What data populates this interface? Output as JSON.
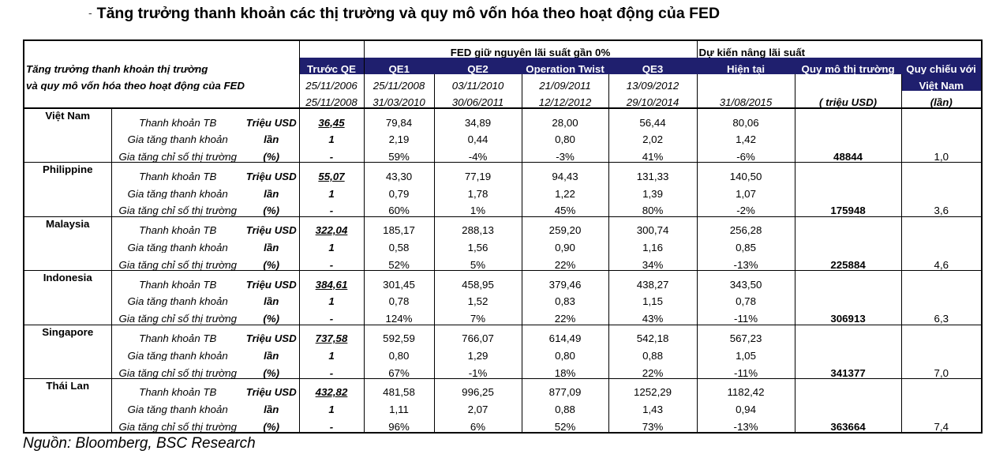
{
  "title": "Tăng trưởng thanh khoản các thị trường và quy mô vốn hóa theo hoạt động của FED",
  "source": "Nguồn: Bloomberg, BSC Research",
  "header": {
    "group_fed": "FED giữ nguyên lãi suất gần 0%",
    "group_rate": "Dự kiến nâng lãi suất",
    "desc_line1": "Tăng trưởng thanh khoản thị trường",
    "desc_line2": "và quy mô vốn hóa theo hoạt động của FED",
    "periods": [
      {
        "label": "Trước QE",
        "from": "25/11/2006",
        "to": "25/11/2008"
      },
      {
        "label": "QE1",
        "from": "25/11/2008",
        "to": "31/03/2010"
      },
      {
        "label": "QE2",
        "from": "03/11/2010",
        "to": "30/06/2011"
      },
      {
        "label": "Operation Twist",
        "from": "21/09/2011",
        "to": "12/12/2012"
      },
      {
        "label": "QE3",
        "from": "13/09/2012",
        "to": "29/10/2014"
      },
      {
        "label": "Hiện tại",
        "from": "",
        "to": "31/08/2015"
      }
    ],
    "market_size": "Quy mô thị trường",
    "market_size_unit": "( triệu USD)",
    "ref_line1": "Quy chiếu với",
    "ref_line2": "Việt Nam",
    "ref_unit": "(lần)"
  },
  "metrics": [
    {
      "name": "Thanh khoản TB",
      "unit": "Triệu USD"
    },
    {
      "name": "Gia tăng thanh khoản",
      "unit": "lần"
    },
    {
      "name": "Gia tăng chỉ số thị trường",
      "unit": "(%)"
    }
  ],
  "countries": [
    {
      "name": "Việt Nam",
      "market_size": "48844",
      "ref": "1,0",
      "rows": [
        [
          "36,45",
          "79,84",
          "34,89",
          "28,00",
          "56,44",
          "80,06"
        ],
        [
          "1",
          "2,19",
          "0,44",
          "0,80",
          "2,02",
          "1,42"
        ],
        [
          "-",
          "59%",
          "-4%",
          "-3%",
          "41%",
          "-6%"
        ]
      ]
    },
    {
      "name": "Philippine",
      "market_size": "175948",
      "ref": "3,6",
      "rows": [
        [
          "55,07",
          "43,30",
          "77,19",
          "94,43",
          "131,33",
          "140,50"
        ],
        [
          "1",
          "0,79",
          "1,78",
          "1,22",
          "1,39",
          "1,07"
        ],
        [
          "-",
          "60%",
          "1%",
          "45%",
          "80%",
          "-2%"
        ]
      ]
    },
    {
      "name": "Malaysia",
      "market_size": "225884",
      "ref": "4,6",
      "rows": [
        [
          "322,04",
          "185,17",
          "288,13",
          "259,20",
          "300,74",
          "256,28"
        ],
        [
          "1",
          "0,58",
          "1,56",
          "0,90",
          "1,16",
          "0,85"
        ],
        [
          "-",
          "52%",
          "5%",
          "22%",
          "34%",
          "-13%"
        ]
      ]
    },
    {
      "name": "Indonesia",
      "market_size": "306913",
      "ref": "6,3",
      "rows": [
        [
          "384,61",
          "301,45",
          "458,95",
          "379,46",
          "438,27",
          "343,50"
        ],
        [
          "1",
          "0,78",
          "1,52",
          "0,83",
          "1,15",
          "0,78"
        ],
        [
          "-",
          "124%",
          "7%",
          "22%",
          "43%",
          "-11%"
        ]
      ]
    },
    {
      "name": "Singapore",
      "market_size": "341377",
      "ref": "7,0",
      "rows": [
        [
          "737,58",
          "592,59",
          "766,07",
          "614,49",
          "542,18",
          "567,23"
        ],
        [
          "1",
          "0,80",
          "1,29",
          "0,80",
          "0,88",
          "1,05"
        ],
        [
          "-",
          "67%",
          "-1%",
          "18%",
          "22%",
          "-11%"
        ]
      ]
    },
    {
      "name": "Thái Lan",
      "market_size": "363664",
      "ref": "7,4",
      "rows": [
        [
          "432,82",
          "481,58",
          "996,25",
          "877,09",
          "1252,29",
          "1182,42"
        ],
        [
          "1",
          "1,11",
          "2,07",
          "0,88",
          "1,43",
          "0,94"
        ],
        [
          "-",
          "96%",
          "6%",
          "52%",
          "73%",
          "-13%"
        ]
      ]
    }
  ]
}
